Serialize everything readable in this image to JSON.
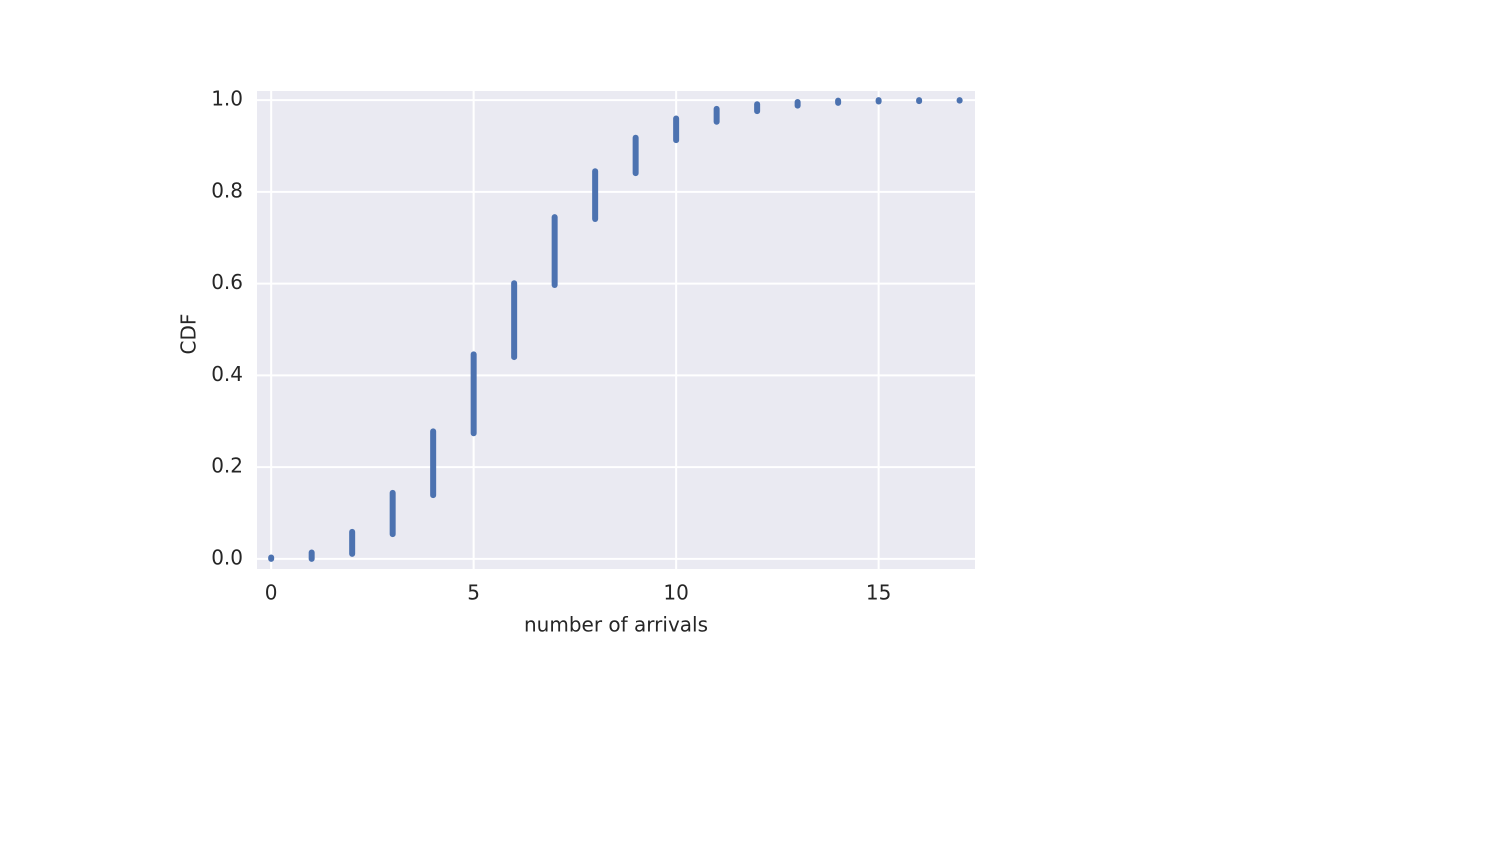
{
  "chart_data": {
    "type": "range",
    "x": [
      0,
      1,
      2,
      3,
      4,
      5,
      6,
      7,
      8,
      9,
      10,
      11,
      12,
      13,
      14,
      15,
      16,
      17
    ],
    "low": [
      0.0,
      0.0,
      0.011,
      0.054,
      0.139,
      0.274,
      0.44,
      0.597,
      0.741,
      0.841,
      0.913,
      0.953,
      0.976,
      0.988,
      0.994,
      0.997,
      0.998,
      0.999
    ],
    "high": [
      0.003,
      0.014,
      0.059,
      0.144,
      0.278,
      0.446,
      0.601,
      0.745,
      0.845,
      0.918,
      0.96,
      0.981,
      0.991,
      0.996,
      0.999,
      1.0,
      1.0,
      1.0
    ],
    "color": "#4c72b0",
    "xlim": [
      -0.35,
      17.38
    ],
    "ylim": [
      -0.022,
      1.02
    ],
    "xticks": [
      0,
      5,
      10,
      15
    ],
    "yticks": [
      {
        "value": 0.0,
        "label": "0.0"
      },
      0.2,
      0.4,
      0.6,
      0.8,
      {
        "value": 1.0,
        "label": "1.0"
      }
    ],
    "xlabel": "number of arrivals",
    "ylabel": "CDF",
    "grid": true
  }
}
